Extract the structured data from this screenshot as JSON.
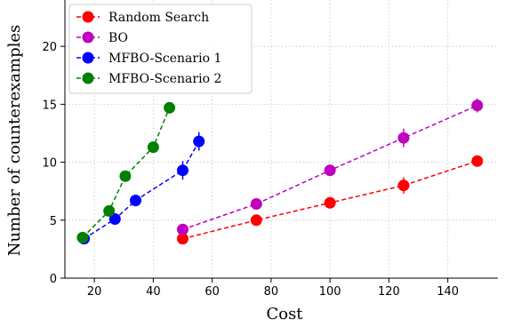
{
  "chart_data": {
    "type": "line",
    "xlabel": "Cost",
    "ylabel": "Number of counterexamples",
    "xlim": [
      10,
      157
    ],
    "ylim": [
      0,
      24
    ],
    "xticks": [
      20,
      40,
      60,
      80,
      100,
      120,
      140
    ],
    "yticks": [
      0,
      5,
      10,
      15,
      20
    ],
    "grid": true,
    "legend_position": "top-left",
    "series": [
      {
        "name": "Random Search",
        "color": "#ff0000",
        "x": [
          50,
          75,
          100,
          125,
          150
        ],
        "y": [
          3.4,
          5.0,
          6.5,
          8.0,
          10.1
        ],
        "yerr": [
          0.3,
          0.3,
          0.4,
          0.7,
          0.4
        ]
      },
      {
        "name": "BO",
        "color": "#bf00bf",
        "x": [
          50,
          75,
          100,
          125,
          150
        ],
        "y": [
          4.2,
          6.4,
          9.3,
          12.1,
          14.9
        ],
        "yerr": [
          0.3,
          0.4,
          0.4,
          0.8,
          0.6
        ]
      },
      {
        "name": "MFBO-Scenario 1",
        "color": "#0000ff",
        "x": [
          16.5,
          27,
          34,
          50,
          55.5
        ],
        "y": [
          3.4,
          5.1,
          6.7,
          9.3,
          11.8
        ],
        "yerr": [
          0.2,
          0.3,
          0.5,
          0.8,
          0.8
        ]
      },
      {
        "name": "MFBO-Scenario 2",
        "color": "#008000",
        "x": [
          16,
          25,
          30.5,
          40,
          45.5
        ],
        "y": [
          3.5,
          5.8,
          8.8,
          11.3,
          14.7
        ],
        "yerr": [
          0.2,
          0.3,
          0.3,
          0.3,
          0.2
        ]
      }
    ]
  }
}
